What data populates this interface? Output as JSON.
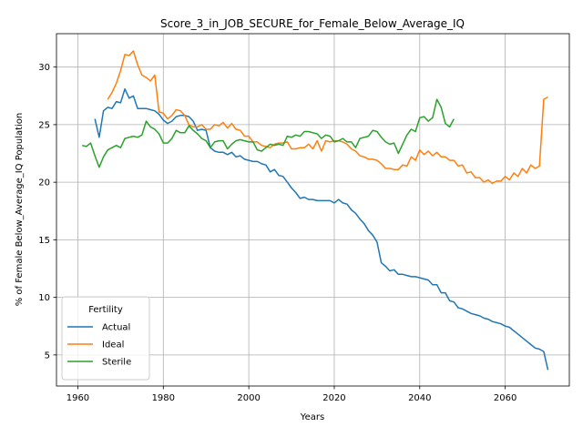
{
  "chart_data": {
    "type": "line",
    "title": "Score_3_in_JOB_SECURE_for_Female_Below_Average_IQ",
    "xlabel": "Years",
    "ylabel": "% of Female Below_Average_IQ Population",
    "xlim": [
      1955,
      2075
    ],
    "ylim": [
      2.3,
      32.9
    ],
    "xticks": [
      1960,
      1980,
      2000,
      2020,
      2040,
      2060
    ],
    "yticks": [
      5,
      10,
      15,
      20,
      25,
      30
    ],
    "grid": true,
    "legend": {
      "title": "Fertility",
      "placement": "lower-left"
    },
    "series": [
      {
        "name": "Actual",
        "color": "#1f77b4",
        "x": [
          1964,
          1965,
          1966,
          1967,
          1968,
          1969,
          1970,
          1971,
          1972,
          1973,
          1974,
          1975,
          1976,
          1977,
          1978,
          1979,
          1980,
          1981,
          1982,
          1983,
          1984,
          1985,
          1986,
          1987,
          1988,
          1989,
          1990,
          1991,
          1992,
          1993,
          1994,
          1995,
          1996,
          1997,
          1998,
          1999,
          2000,
          2001,
          2002,
          2003,
          2004,
          2005,
          2006,
          2007,
          2008,
          2009,
          2010,
          2011,
          2012,
          2013,
          2014,
          2015,
          2016,
          2017,
          2018,
          2019,
          2020,
          2021,
          2022,
          2023,
          2024,
          2025,
          2026,
          2027,
          2028,
          2029,
          2030,
          2031,
          2032,
          2033,
          2034,
          2035,
          2036,
          2037,
          2038,
          2039,
          2040,
          2041,
          2042,
          2043,
          2044,
          2045,
          2046,
          2047,
          2048,
          2049,
          2050,
          2051,
          2052,
          2053,
          2054,
          2055,
          2056,
          2057,
          2058,
          2059,
          2060,
          2061,
          2062,
          2063,
          2064,
          2065,
          2066,
          2067,
          2068,
          2069,
          2070
        ],
        "values": [
          25.5,
          23.9,
          26.2,
          26.5,
          26.4,
          27.0,
          26.9,
          28.1,
          27.3,
          27.5,
          26.4,
          26.4,
          26.4,
          26.3,
          26.2,
          25.9,
          25.4,
          25.1,
          25.3,
          25.7,
          25.8,
          25.8,
          25.7,
          25.3,
          24.5,
          24.6,
          24.5,
          23.0,
          22.7,
          22.6,
          22.6,
          22.4,
          22.6,
          22.2,
          22.3,
          22.0,
          21.9,
          21.8,
          21.8,
          21.6,
          21.5,
          20.9,
          21.1,
          20.6,
          20.5,
          20.0,
          19.5,
          19.1,
          18.6,
          18.7,
          18.5,
          18.5,
          18.4,
          18.4,
          18.4,
          18.4,
          18.2,
          18.5,
          18.2,
          18.1,
          17.6,
          17.3,
          16.8,
          16.4,
          15.8,
          15.4,
          14.8,
          13.0,
          12.7,
          12.3,
          12.4,
          12.0,
          12.0,
          11.9,
          11.8,
          11.8,
          11.7,
          11.6,
          11.5,
          11.1,
          11.1,
          10.4,
          10.4,
          9.7,
          9.6,
          9.1,
          9.0,
          8.8,
          8.6,
          8.5,
          8.4,
          8.2,
          8.1,
          7.9,
          7.8,
          7.7,
          7.5,
          7.4,
          7.1,
          6.8,
          6.5,
          6.2,
          5.9,
          5.6,
          5.5,
          5.3,
          3.7
        ]
      },
      {
        "name": "Ideal",
        "color": "#ff7f0e",
        "x": [
          1967,
          1968,
          1969,
          1970,
          1971,
          1972,
          1973,
          1974,
          1975,
          1976,
          1977,
          1978,
          1979,
          1980,
          1981,
          1982,
          1983,
          1984,
          1985,
          1986,
          1987,
          1988,
          1989,
          1990,
          1991,
          1992,
          1993,
          1994,
          1995,
          1996,
          1997,
          1998,
          1999,
          2000,
          2001,
          2002,
          2003,
          2004,
          2005,
          2006,
          2007,
          2008,
          2009,
          2010,
          2011,
          2012,
          2013,
          2014,
          2015,
          2016,
          2017,
          2018,
          2019,
          2020,
          2021,
          2022,
          2023,
          2024,
          2025,
          2026,
          2027,
          2028,
          2029,
          2030,
          2031,
          2032,
          2033,
          2034,
          2035,
          2036,
          2037,
          2038,
          2039,
          2040,
          2041,
          2042,
          2043,
          2044,
          2045,
          2046,
          2047,
          2048,
          2049,
          2050,
          2051,
          2052,
          2053,
          2054,
          2055,
          2056,
          2057,
          2058,
          2059,
          2060,
          2061,
          2062,
          2063,
          2064,
          2065,
          2066,
          2067,
          2068,
          2069,
          2070
        ],
        "values": [
          27.2,
          27.8,
          28.6,
          29.7,
          31.1,
          31.0,
          31.4,
          30.2,
          29.3,
          29.1,
          28.8,
          29.3,
          26.1,
          26.0,
          25.5,
          25.8,
          26.3,
          26.2,
          25.8,
          25.0,
          24.8,
          24.8,
          25.0,
          24.6,
          24.6,
          25.0,
          24.9,
          25.2,
          24.7,
          25.1,
          24.6,
          24.5,
          24.0,
          24.0,
          23.5,
          23.5,
          23.2,
          23.1,
          23.0,
          23.3,
          23.4,
          23.4,
          23.5,
          22.9,
          22.9,
          23.0,
          23.0,
          23.3,
          22.9,
          23.6,
          22.7,
          23.6,
          23.5,
          23.6,
          23.6,
          23.5,
          23.3,
          22.9,
          22.7,
          22.3,
          22.2,
          22.0,
          22.0,
          21.9,
          21.6,
          21.2,
          21.2,
          21.1,
          21.1,
          21.5,
          21.4,
          22.2,
          21.9,
          22.8,
          22.4,
          22.7,
          22.3,
          22.6,
          22.2,
          22.2,
          21.9,
          21.9,
          21.4,
          21.5,
          20.8,
          20.9,
          20.4,
          20.4,
          20.0,
          20.2,
          19.9,
          20.1,
          20.1,
          20.5,
          20.2,
          20.8,
          20.5,
          21.2,
          20.8,
          21.5,
          21.2,
          21.4,
          27.2,
          27.4
        ]
      },
      {
        "name": "Sterile",
        "color": "#2ca02c",
        "x": [
          1961,
          1962,
          1963,
          1964,
          1965,
          1966,
          1967,
          1968,
          1969,
          1970,
          1971,
          1972,
          1973,
          1974,
          1975,
          1976,
          1977,
          1978,
          1979,
          1980,
          1981,
          1982,
          1983,
          1984,
          1985,
          1986,
          1987,
          1988,
          1989,
          1990,
          1991,
          1992,
          1993,
          1994,
          1995,
          1996,
          1997,
          1998,
          1999,
          2000,
          2001,
          2002,
          2003,
          2004,
          2005,
          2006,
          2007,
          2008,
          2009,
          2010,
          2011,
          2012,
          2013,
          2014,
          2015,
          2016,
          2017,
          2018,
          2019,
          2020,
          2021,
          2022,
          2023,
          2024,
          2025,
          2026,
          2027,
          2028,
          2029,
          2030,
          2031,
          2032,
          2033,
          2034,
          2035,
          2036,
          2037,
          2038,
          2039,
          2040,
          2041,
          2042,
          2043,
          2044,
          2045,
          2046,
          2047,
          2048
        ],
        "values": [
          23.2,
          23.1,
          23.4,
          22.3,
          21.3,
          22.2,
          22.8,
          23.0,
          23.2,
          23.0,
          23.8,
          23.9,
          24.0,
          23.9,
          24.1,
          25.3,
          24.8,
          24.6,
          24.2,
          23.4,
          23.4,
          23.8,
          24.5,
          24.3,
          24.3,
          24.9,
          24.5,
          24.2,
          23.8,
          23.6,
          23.0,
          23.5,
          23.6,
          23.6,
          22.9,
          23.3,
          23.6,
          23.7,
          23.6,
          23.5,
          23.5,
          22.8,
          22.7,
          23.0,
          23.3,
          23.2,
          23.3,
          23.2,
          24.0,
          23.9,
          24.1,
          24.0,
          24.4,
          24.4,
          24.3,
          24.2,
          23.8,
          24.1,
          24.0,
          23.5,
          23.6,
          23.8,
          23.5,
          23.5,
          23.0,
          23.8,
          23.9,
          24.0,
          24.5,
          24.4,
          23.9,
          23.5,
          23.3,
          23.4,
          22.5,
          23.3,
          24.1,
          24.6,
          24.4,
          25.6,
          25.7,
          25.3,
          25.6,
          27.2,
          26.5,
          25.1,
          24.8,
          25.5
        ]
      }
    ]
  }
}
